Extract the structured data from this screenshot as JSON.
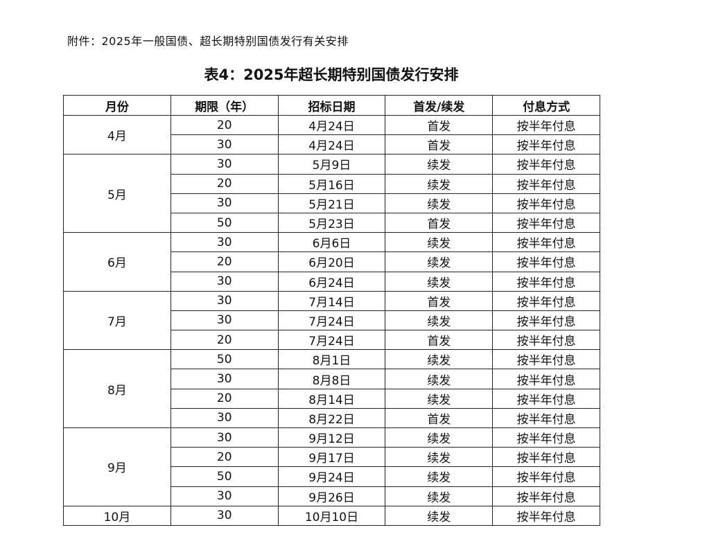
{
  "header": {
    "attachment": "附件：2025年一般国债、超长期特别国债发行有关安排",
    "title": "表4：2025年超长期特别国债发行安排"
  },
  "table": {
    "columns": [
      "月份",
      "期限（年）",
      "招标日期",
      "首发/续发",
      "付息方式"
    ],
    "groups": [
      {
        "month": "4月",
        "rows": [
          [
            "20",
            "4月24日",
            "首发",
            "按半年付息"
          ],
          [
            "30",
            "4月24日",
            "首发",
            "按半年付息"
          ]
        ]
      },
      {
        "month": "5月",
        "rows": [
          [
            "30",
            "5月9日",
            "续发",
            "按半年付息"
          ],
          [
            "20",
            "5月16日",
            "续发",
            "按半年付息"
          ],
          [
            "30",
            "5月21日",
            "续发",
            "按半年付息"
          ],
          [
            "50",
            "5月23日",
            "首发",
            "按半年付息"
          ]
        ]
      },
      {
        "month": "6月",
        "rows": [
          [
            "30",
            "6月6日",
            "续发",
            "按半年付息"
          ],
          [
            "20",
            "6月20日",
            "续发",
            "按半年付息"
          ],
          [
            "30",
            "6月24日",
            "续发",
            "按半年付息"
          ]
        ]
      },
      {
        "month": "7月",
        "rows": [
          [
            "30",
            "7月14日",
            "首发",
            "按半年付息"
          ],
          [
            "30",
            "7月24日",
            "续发",
            "按半年付息"
          ],
          [
            "20",
            "7月24日",
            "首发",
            "按半年付息"
          ]
        ]
      },
      {
        "month": "8月",
        "rows": [
          [
            "50",
            "8月1日",
            "续发",
            "按半年付息"
          ],
          [
            "30",
            "8月8日",
            "续发",
            "按半年付息"
          ],
          [
            "20",
            "8月14日",
            "续发",
            "按半年付息"
          ],
          [
            "30",
            "8月22日",
            "首发",
            "按半年付息"
          ]
        ]
      },
      {
        "month": "9月",
        "rows": [
          [
            "30",
            "9月12日",
            "续发",
            "按半年付息"
          ],
          [
            "20",
            "9月17日",
            "续发",
            "按半年付息"
          ],
          [
            "50",
            "9月24日",
            "续发",
            "按半年付息"
          ],
          [
            "30",
            "9月26日",
            "续发",
            "按半年付息"
          ]
        ]
      },
      {
        "month": "10月",
        "rows": [
          [
            "30",
            "10月10日",
            "续发",
            "按半年付息"
          ]
        ]
      }
    ]
  }
}
